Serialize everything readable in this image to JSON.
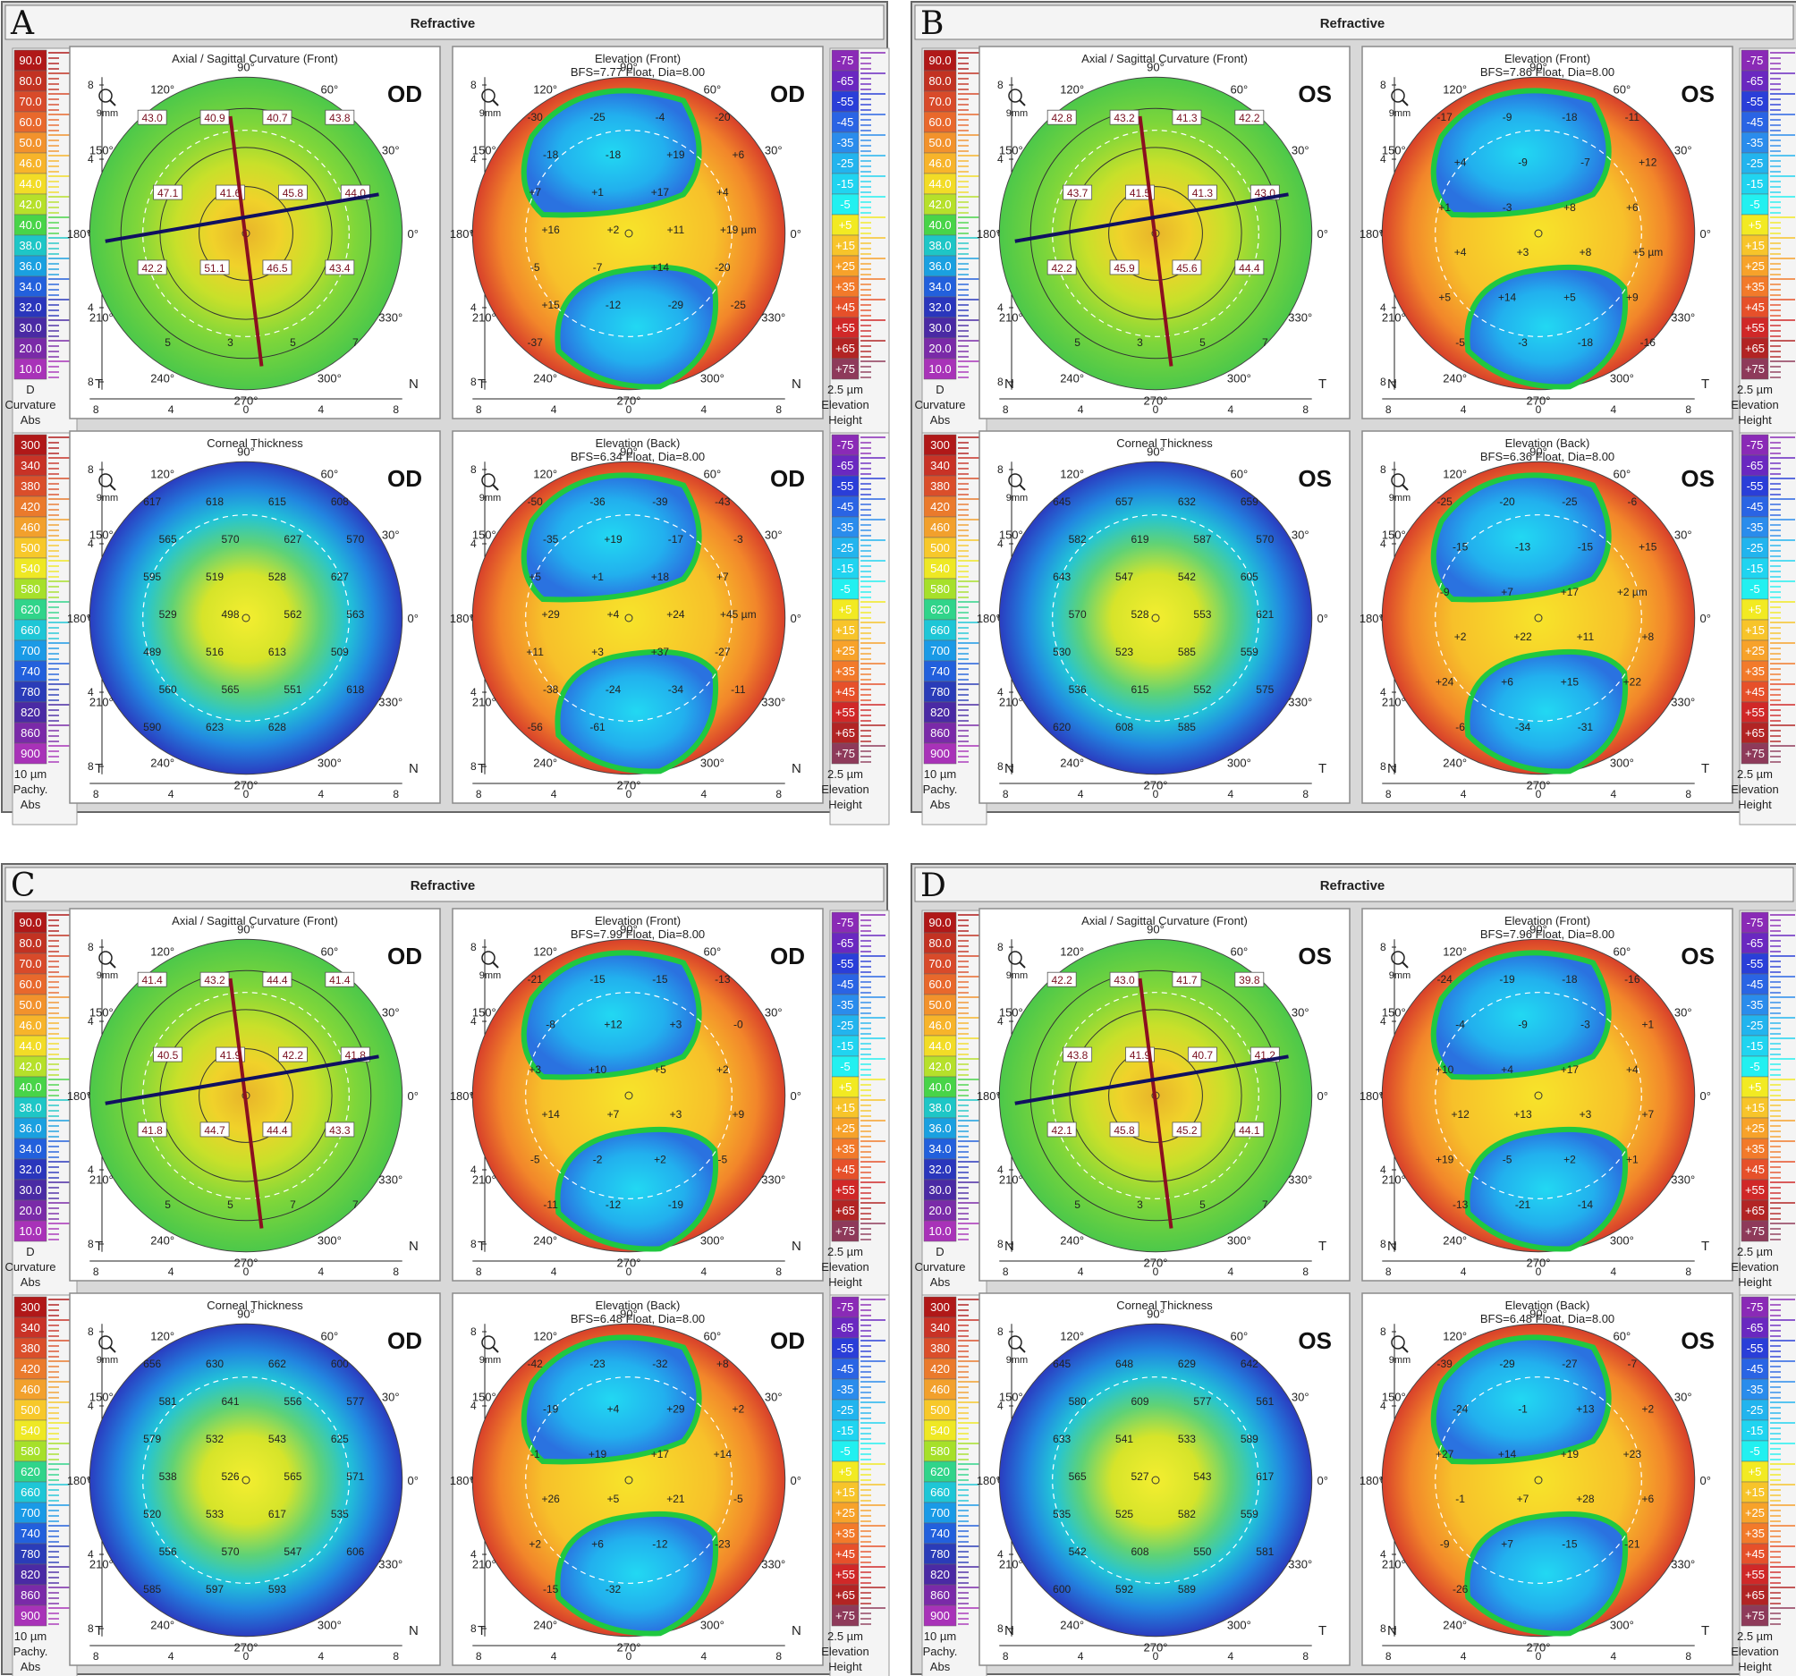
{
  "header_title": "Refractive",
  "panel_titles": {
    "curvature": "Axial / Sagittal Curvature (Front)",
    "elev_front": "Elevation (Front)",
    "thickness": "Corneal Thickness",
    "elev_back": "Elevation (Back)"
  },
  "zoom_label": "9mm",
  "angle_labels": [
    "90°",
    "60°",
    "30°",
    "0°",
    "330°",
    "300°",
    "270°",
    "240°",
    "210°",
    "180°",
    "150°",
    "120°"
  ],
  "axis_ticks": [
    "8",
    "4",
    "0",
    "4",
    "8"
  ],
  "scales": {
    "curvature": {
      "values": [
        "90.0",
        "80.0",
        "70.0",
        "60.0",
        "50.0",
        "46.0",
        "44.0",
        "42.0",
        "40.0",
        "38.0",
        "36.0",
        "34.0",
        "32.0",
        "30.0",
        "20.0",
        "10.0"
      ],
      "colors": [
        "#b01818",
        "#c23222",
        "#d84a2a",
        "#e8682c",
        "#f2922c",
        "#f7b42a",
        "#f2dc26",
        "#b6e02a",
        "#48d448",
        "#1ec6c6",
        "#1aa0e0",
        "#2260dc",
        "#2a36bc",
        "#4a2aa4",
        "#7a2aa8",
        "#a832b8"
      ],
      "footer": [
        "D",
        "Curvature",
        "Abs"
      ]
    },
    "elevation": {
      "values": [
        "-75",
        "-65",
        "-55",
        "-45",
        "-35",
        "-25",
        "-15",
        "-5",
        "+5",
        "+15",
        "+25",
        "+35",
        "+45",
        "+55",
        "+65",
        "+75"
      ],
      "colors": [
        "#8a2ab6",
        "#6a28c0",
        "#2a3ed8",
        "#2a64e4",
        "#2a8cec",
        "#22b4ee",
        "#20d4f0",
        "#22f0f0",
        "#f2ea22",
        "#f7c42a",
        "#f7a22a",
        "#f27a2a",
        "#e6502a",
        "#d02828",
        "#b22424",
        "#8e3a5a"
      ],
      "footer": [
        "2.5 µm",
        "Elevation",
        "Height"
      ]
    },
    "thickness": {
      "values": [
        "300",
        "340",
        "380",
        "420",
        "460",
        "500",
        "540",
        "580",
        "620",
        "660",
        "700",
        "740",
        "780",
        "820",
        "860",
        "900"
      ],
      "colors": [
        "#b01818",
        "#c83226",
        "#da4e2a",
        "#ea7a2c",
        "#f2a02c",
        "#f7c82a",
        "#eee824",
        "#a6e02a",
        "#30d48a",
        "#1ec6d6",
        "#1a9ae6",
        "#2260dc",
        "#2a3cb8",
        "#4a2aa4",
        "#7a2aa8",
        "#a832b8"
      ],
      "footer": [
        "10 µm",
        "Pachy.",
        "Abs"
      ]
    }
  },
  "figures": [
    {
      "letter": "A",
      "eye": "OD",
      "left_label": "T",
      "right_label": "N",
      "bfs_front": "BFS=7.77 Float, Dia=8.00",
      "bfs_back": "BFS=6.34 Float, Dia=8.00",
      "curvature_values": [
        "43.0",
        "40.9",
        "40.7",
        "43.8",
        "47.1",
        "41.6",
        "45.8",
        "44.0",
        "42.2",
        "51.1",
        "46.5",
        "43.4",
        "5",
        "3",
        "5",
        "7"
      ],
      "elev_front_values": [
        "-30",
        "-25",
        "-4",
        "-20",
        "-18",
        "-18",
        "+19",
        "+6",
        "+7",
        "+1",
        "+17",
        "+4",
        "+16",
        "+2",
        "+11",
        "+19 µm",
        "-5",
        "-7",
        "+14",
        "-20",
        "+15",
        "-12",
        "-29",
        "-25",
        "-37"
      ],
      "thickness_values": [
        "617",
        "618",
        "615",
        "608",
        "565",
        "570",
        "627",
        "570",
        "595",
        "519",
        "528",
        "627",
        "529",
        "498",
        "562",
        "563",
        "489",
        "516",
        "613",
        "509",
        "560",
        "565",
        "551",
        "618",
        "590",
        "623",
        "628"
      ],
      "elev_back_values": [
        "-50",
        "-36",
        "-39",
        "-43",
        "-35",
        "+19",
        "-17",
        "-3",
        "+5",
        "+1",
        "+18",
        "+7",
        "+29",
        "+4",
        "+24",
        "+45 µm",
        "+11",
        "+3",
        "+37",
        "-27",
        "-38",
        "-24",
        "-34",
        "-11",
        "-56",
        "-61"
      ]
    },
    {
      "letter": "B",
      "eye": "OS",
      "left_label": "N",
      "right_label": "T",
      "bfs_front": "BFS=7.86 Float, Dia=8.00",
      "bfs_back": "BFS=6.36 Float, Dia=8.00",
      "curvature_values": [
        "42.8",
        "43.2",
        "41.3",
        "42.2",
        "43.7",
        "41.5",
        "41.3",
        "43.0",
        "42.2",
        "45.9",
        "45.6",
        "44.4",
        "5",
        "3",
        "5",
        "7"
      ],
      "elev_front_values": [
        "-17",
        "-9",
        "-18",
        "-11",
        "+4",
        "-9",
        "-7",
        "+12",
        "+1",
        "-3",
        "+8",
        "+6",
        "+4",
        "+3",
        "+8",
        "+5 µm",
        "+5",
        "+14",
        "+5",
        "+9",
        "-5",
        "-3",
        "-18",
        "-16"
      ],
      "thickness_values": [
        "645",
        "657",
        "632",
        "659",
        "582",
        "619",
        "587",
        "570",
        "643",
        "547",
        "542",
        "605",
        "570",
        "528",
        "553",
        "621",
        "530",
        "523",
        "585",
        "559",
        "536",
        "615",
        "552",
        "575",
        "620",
        "608",
        "585"
      ],
      "elev_back_values": [
        "-25",
        "-20",
        "-25",
        "-6",
        "-15",
        "-13",
        "-15",
        "+15",
        "-9",
        "+7",
        "+17",
        "+2 µm",
        "+2",
        "+22",
        "+11",
        "+8",
        "+24",
        "+6",
        "+15",
        "+22",
        "-6",
        "-34",
        "-31"
      ]
    },
    {
      "letter": "C",
      "eye": "OD",
      "left_label": "T",
      "right_label": "N",
      "bfs_front": "BFS=7.99 Float, Dia=8.00",
      "bfs_back": "BFS=6.48 Float, Dia=8.00",
      "curvature_values": [
        "41.4",
        "43.2",
        "44.4",
        "41.4",
        "40.5",
        "41.9",
        "42.2",
        "41.8",
        "41.8",
        "44.7",
        "44.4",
        "43.3",
        "5",
        "5",
        "7",
        "7"
      ],
      "elev_front_values": [
        "-21",
        "-15",
        "-15",
        "-13",
        "-8",
        "+12",
        "+3",
        "-0",
        "+3",
        "+10",
        "+5",
        "+2",
        "+14",
        "+7",
        "+3",
        "+9",
        "-5",
        "-2",
        "+2",
        "-5",
        "-11",
        "-12",
        "-19"
      ],
      "thickness_values": [
        "656",
        "630",
        "662",
        "600",
        "581",
        "641",
        "556",
        "577",
        "579",
        "532",
        "543",
        "625",
        "538",
        "526",
        "565",
        "571",
        "520",
        "533",
        "617",
        "535",
        "556",
        "570",
        "547",
        "606",
        "585",
        "597",
        "593"
      ],
      "elev_back_values": [
        "-42",
        "-23",
        "-32",
        "+8",
        "-19",
        "+4",
        "+29",
        "+2",
        "-1",
        "+19",
        "+17",
        "+14",
        "+26",
        "+5",
        "+21",
        "-5",
        "+2",
        "+6",
        "-12",
        "-23",
        "-15",
        "-32"
      ]
    },
    {
      "letter": "D",
      "eye": "OS",
      "left_label": "N",
      "right_label": "T",
      "bfs_front": "BFS=7.96 Float, Dia=8.00",
      "bfs_back": "BFS=6.48 Float, Dia=8.00",
      "curvature_values": [
        "42.2",
        "43.0",
        "41.7",
        "39.8",
        "43.8",
        "41.9",
        "40.7",
        "41.2",
        "42.1",
        "45.8",
        "45.2",
        "44.1",
        "5",
        "3",
        "5",
        "7"
      ],
      "elev_front_values": [
        "-24",
        "-19",
        "-18",
        "-16",
        "-4",
        "-9",
        "-3",
        "+1",
        "+10",
        "+4",
        "+17",
        "+4",
        "+12",
        "+13",
        "+3",
        "+7",
        "+19",
        "-5",
        "+2",
        "+1",
        "-13",
        "-21",
        "-14"
      ],
      "thickness_values": [
        "645",
        "648",
        "629",
        "642",
        "580",
        "609",
        "577",
        "561",
        "633",
        "541",
        "533",
        "589",
        "565",
        "527",
        "543",
        "617",
        "535",
        "525",
        "582",
        "559",
        "542",
        "608",
        "550",
        "581",
        "600",
        "592",
        "589"
      ],
      "elev_back_values": [
        "-39",
        "-29",
        "-27",
        "-7",
        "-24",
        "-1",
        "+13",
        "+2",
        "+27",
        "+14",
        "+19",
        "+23",
        "-1",
        "+7",
        "+28",
        "+6",
        "-9",
        "+7",
        "-15",
        "-21",
        "-26"
      ]
    }
  ]
}
